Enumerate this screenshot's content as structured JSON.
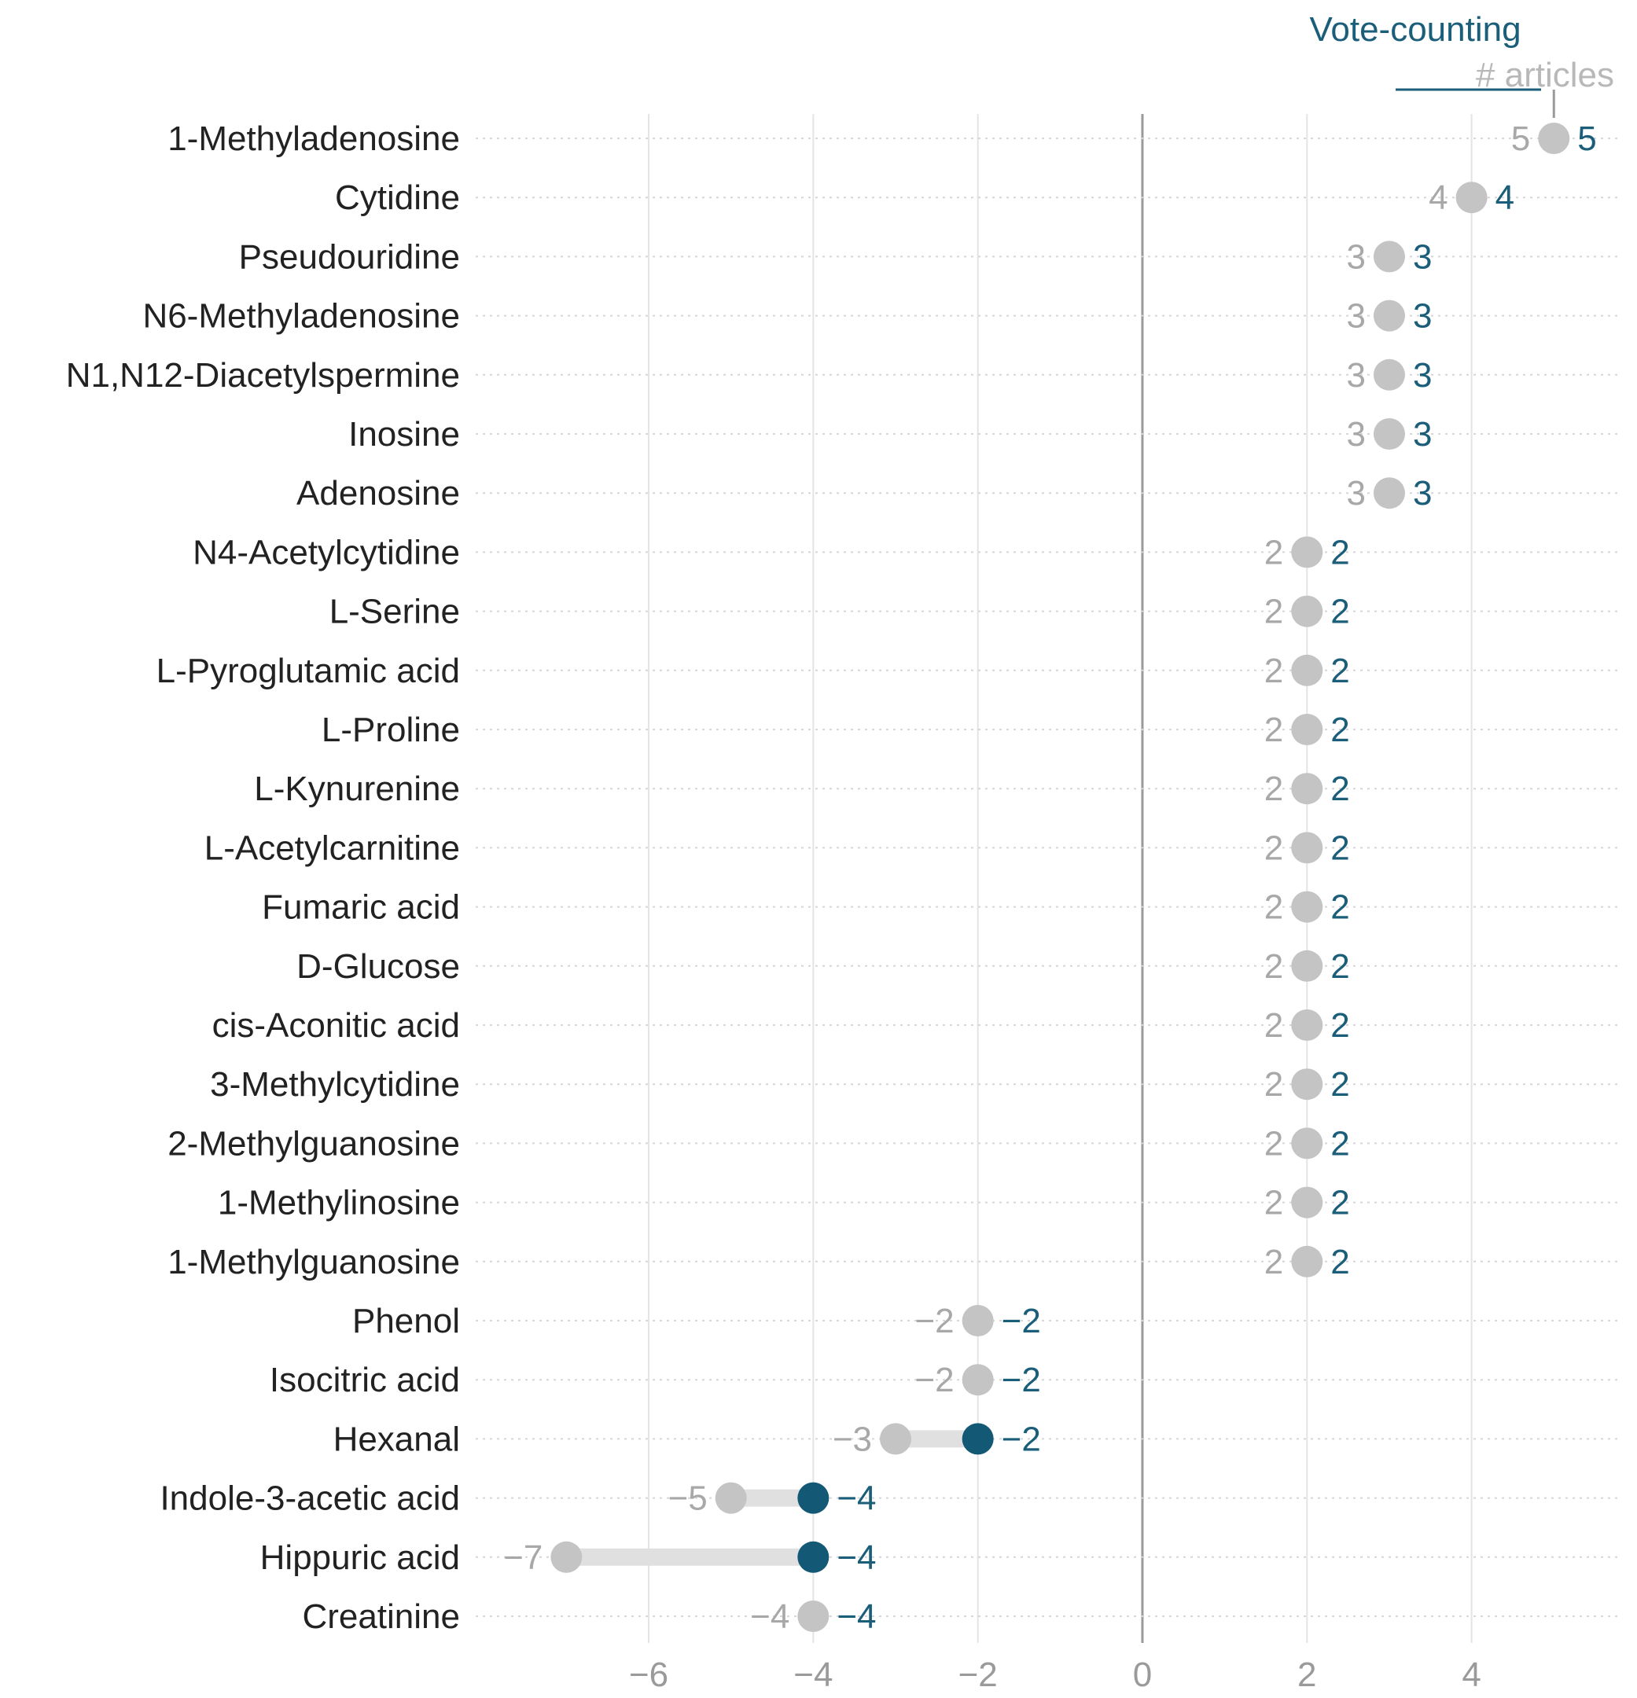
{
  "chart_data": {
    "type": "dumbbell",
    "xlim": [
      -8.15,
      5.8
    ],
    "x_ticks": [
      -6,
      -4,
      -2,
      0,
      2,
      4
    ],
    "x_tick_labels": [
      "−6",
      "−4",
      "−2",
      "0",
      "2",
      "4"
    ],
    "legend": {
      "title": "Vote-counting",
      "subtitle": "# articles",
      "placement": "top-right"
    },
    "series": [
      {
        "name": "# articles",
        "color": "#c4c4c4"
      },
      {
        "name": "Vote-counting",
        "color": "#1b5e7a"
      }
    ],
    "colors": {
      "articles_dot": "#c4c4c4",
      "articles_text": "#a8a8a8",
      "vote_dot": "#135874",
      "vote_text": "#1b5e7a",
      "segment": "#e0e0e0",
      "grid": "#e4e4e4",
      "zero_line": "#9a9a9a",
      "row_line": "#d6d6d6"
    },
    "rows": [
      {
        "label": "1-Methyladenosine",
        "articles": 5,
        "articles_label": "5",
        "vote": 5,
        "vote_label": "5"
      },
      {
        "label": "Cytidine",
        "articles": 4,
        "articles_label": "4",
        "vote": 4,
        "vote_label": "4"
      },
      {
        "label": "Pseudouridine",
        "articles": 3,
        "articles_label": "3",
        "vote": 3,
        "vote_label": "3"
      },
      {
        "label": "N6-Methyladenosine",
        "articles": 3,
        "articles_label": "3",
        "vote": 3,
        "vote_label": "3"
      },
      {
        "label": "N1,N12-Diacetylspermine",
        "articles": 3,
        "articles_label": "3",
        "vote": 3,
        "vote_label": "3"
      },
      {
        "label": "Inosine",
        "articles": 3,
        "articles_label": "3",
        "vote": 3,
        "vote_label": "3"
      },
      {
        "label": "Adenosine",
        "articles": 3,
        "articles_label": "3",
        "vote": 3,
        "vote_label": "3"
      },
      {
        "label": "N4-Acetylcytidine",
        "articles": 2,
        "articles_label": "2",
        "vote": 2,
        "vote_label": "2"
      },
      {
        "label": "L-Serine",
        "articles": 2,
        "articles_label": "2",
        "vote": 2,
        "vote_label": "2"
      },
      {
        "label": "L-Pyroglutamic acid",
        "articles": 2,
        "articles_label": "2",
        "vote": 2,
        "vote_label": "2"
      },
      {
        "label": "L-Proline",
        "articles": 2,
        "articles_label": "2",
        "vote": 2,
        "vote_label": "2"
      },
      {
        "label": "L-Kynurenine",
        "articles": 2,
        "articles_label": "2",
        "vote": 2,
        "vote_label": "2"
      },
      {
        "label": "L-Acetylcarnitine",
        "articles": 2,
        "articles_label": "2",
        "vote": 2,
        "vote_label": "2"
      },
      {
        "label": "Fumaric acid",
        "articles": 2,
        "articles_label": "2",
        "vote": 2,
        "vote_label": "2"
      },
      {
        "label": "D-Glucose",
        "articles": 2,
        "articles_label": "2",
        "vote": 2,
        "vote_label": "2"
      },
      {
        "label": "cis-Aconitic acid",
        "articles": 2,
        "articles_label": "2",
        "vote": 2,
        "vote_label": "2"
      },
      {
        "label": "3-Methylcytidine",
        "articles": 2,
        "articles_label": "2",
        "vote": 2,
        "vote_label": "2"
      },
      {
        "label": "2-Methylguanosine",
        "articles": 2,
        "articles_label": "2",
        "vote": 2,
        "vote_label": "2"
      },
      {
        "label": "1-Methylinosine",
        "articles": 2,
        "articles_label": "2",
        "vote": 2,
        "vote_label": "2"
      },
      {
        "label": "1-Methylguanosine",
        "articles": 2,
        "articles_label": "2",
        "vote": 2,
        "vote_label": "2"
      },
      {
        "label": "Phenol",
        "articles": -2,
        "articles_label": "−2",
        "vote": -2,
        "vote_label": "−2"
      },
      {
        "label": "Isocitric acid",
        "articles": -2,
        "articles_label": "−2",
        "vote": -2,
        "vote_label": "−2"
      },
      {
        "label": "Hexanal",
        "articles": -3,
        "articles_label": "−3",
        "vote": -2,
        "vote_label": "−2"
      },
      {
        "label": "Indole-3-acetic acid",
        "articles": -5,
        "articles_label": "−5",
        "vote": -4,
        "vote_label": "−4"
      },
      {
        "label": "Hippuric acid",
        "articles": -7,
        "articles_label": "−7",
        "vote": -4,
        "vote_label": "−4"
      },
      {
        "label": "Creatinine",
        "articles": -4,
        "articles_label": "−4",
        "vote": -4,
        "vote_label": "−4"
      }
    ]
  }
}
